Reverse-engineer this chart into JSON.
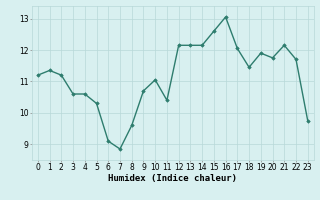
{
  "x": [
    0,
    1,
    2,
    3,
    4,
    5,
    6,
    7,
    8,
    9,
    10,
    11,
    12,
    13,
    14,
    15,
    16,
    17,
    18,
    19,
    20,
    21,
    22,
    23
  ],
  "y": [
    11.2,
    11.35,
    11.2,
    10.6,
    10.6,
    10.3,
    9.1,
    8.85,
    9.6,
    10.7,
    11.05,
    10.4,
    12.15,
    12.15,
    12.15,
    12.6,
    13.05,
    12.05,
    11.45,
    11.9,
    11.75,
    12.15,
    11.7,
    9.75
  ],
  "line_color": "#2e7d6e",
  "marker": "D",
  "marker_size": 1.8,
  "bg_color": "#d8f0f0",
  "grid_color": "#b8d8d8",
  "xlabel": "Humidex (Indice chaleur)",
  "xlabel_fontsize": 6.5,
  "yticks": [
    9,
    10,
    11,
    12,
    13
  ],
  "xtick_labels": [
    "0",
    "1",
    "2",
    "3",
    "4",
    "5",
    "6",
    "7",
    "8",
    "9",
    "10",
    "11",
    "12",
    "13",
    "14",
    "15",
    "16",
    "17",
    "18",
    "19",
    "20",
    "21",
    "22",
    "23"
  ],
  "ylim": [
    8.5,
    13.4
  ],
  "xlim": [
    -0.5,
    23.5
  ],
  "tick_fontsize": 5.5,
  "line_width": 1.0
}
